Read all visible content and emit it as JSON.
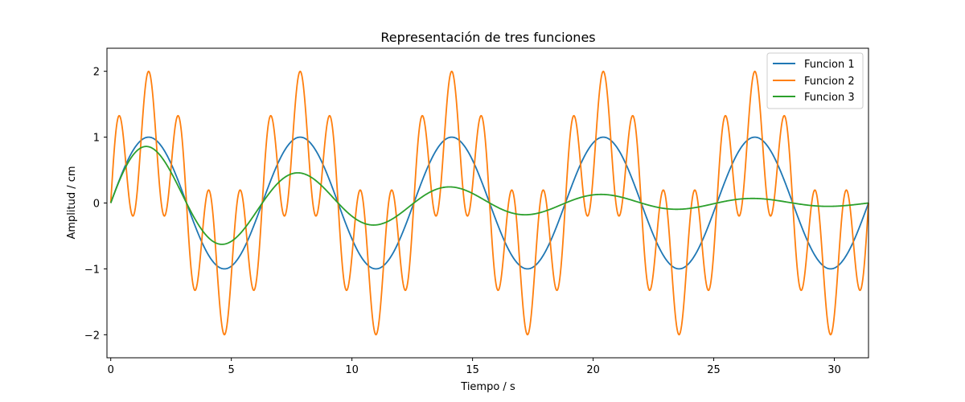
{
  "chart_data": {
    "type": "line",
    "title": "Representación de tres funciones",
    "xlabel": "Tiempo / s",
    "ylabel": "Amplitud / cm",
    "xlim": [
      -0.157,
      31.416
    ],
    "ylim": [
      -2.35,
      2.35
    ],
    "xticks": [
      0,
      5,
      10,
      15,
      20,
      25,
      30
    ],
    "yticks": [
      -2,
      -1,
      0,
      1,
      2
    ],
    "grid": false,
    "legend_position": "top-right",
    "x_range": [
      0,
      31.4159
    ],
    "num_points": 1200,
    "series": [
      {
        "name": "Funcion 1",
        "color": "#1f77b4",
        "expression": "sin(t)"
      },
      {
        "name": "Funcion 2",
        "color": "#ff7f0e",
        "expression": "sin(t) + sin(5t)"
      },
      {
        "name": "Funcion 3",
        "color": "#2ca02c",
        "expression": "sin(t) * exp(-t/10)"
      }
    ]
  }
}
